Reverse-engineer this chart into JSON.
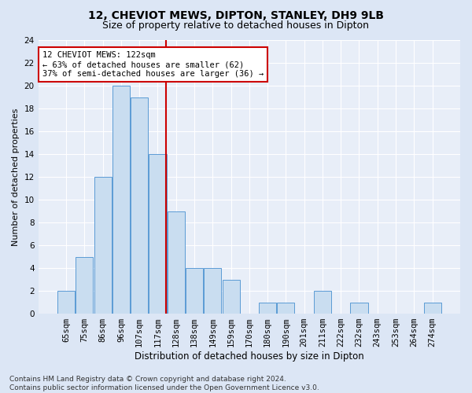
{
  "title1": "12, CHEVIOT MEWS, DIPTON, STANLEY, DH9 9LB",
  "title2": "Size of property relative to detached houses in Dipton",
  "xlabel": "Distribution of detached houses by size in Dipton",
  "ylabel": "Number of detached properties",
  "bins": [
    "65sqm",
    "75sqm",
    "86sqm",
    "96sqm",
    "107sqm",
    "117sqm",
    "128sqm",
    "138sqm",
    "149sqm",
    "159sqm",
    "170sqm",
    "180sqm",
    "190sqm",
    "201sqm",
    "211sqm",
    "222sqm",
    "232sqm",
    "243sqm",
    "253sqm",
    "264sqm",
    "274sqm"
  ],
  "values": [
    2,
    5,
    12,
    20,
    19,
    14,
    9,
    4,
    4,
    3,
    0,
    1,
    1,
    0,
    2,
    0,
    1,
    0,
    0,
    0,
    1
  ],
  "bar_color": "#c9ddf0",
  "bar_edge_color": "#5b9bd5",
  "vline_color": "#cc0000",
  "annotation_line1": "12 CHEVIOT MEWS: 122sqm",
  "annotation_line2": "← 63% of detached houses are smaller (62)",
  "annotation_line3": "37% of semi-detached houses are larger (36) →",
  "annotation_box_color": "#ffffff",
  "annotation_box_edge": "#cc0000",
  "ylim": [
    0,
    24
  ],
  "yticks": [
    0,
    2,
    4,
    6,
    8,
    10,
    12,
    14,
    16,
    18,
    20,
    22,
    24
  ],
  "footnote": "Contains HM Land Registry data © Crown copyright and database right 2024.\nContains public sector information licensed under the Open Government Licence v3.0.",
  "fig_bg_color": "#dce6f5",
  "plot_bg_color": "#e8eef8",
  "grid_color": "#ffffff",
  "title1_fontsize": 10,
  "title2_fontsize": 9,
  "xlabel_fontsize": 8.5,
  "ylabel_fontsize": 8,
  "tick_fontsize": 7.5,
  "annotation_fontsize": 7.5,
  "footnote_fontsize": 6.5
}
